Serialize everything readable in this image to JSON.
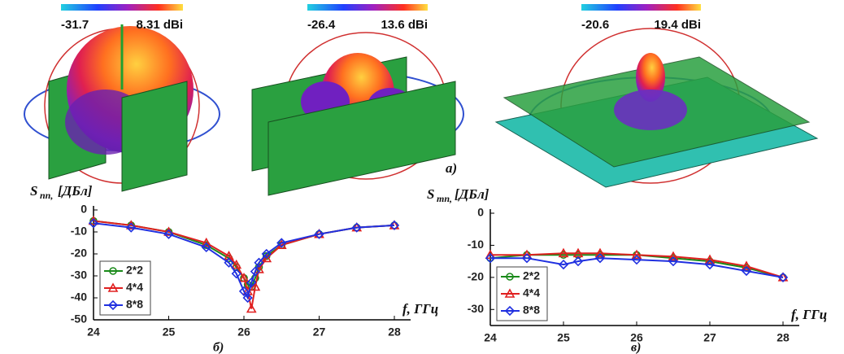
{
  "panel_a": {
    "label": "a)",
    "colorbars": [
      {
        "min": "-31.7",
        "max": "8.31 dBi"
      },
      {
        "min": "-26.4",
        "max": "13.6 dBi"
      },
      {
        "min": "-20.6",
        "max": "19.4 dBi"
      }
    ]
  },
  "chart_data": [
    {
      "type": "line",
      "caption": "б)",
      "ylabel": "S",
      "ylabel_sub": "nn,",
      "ylabel_unit": "[ДБл]",
      "xlabel": "f, ГГц",
      "x": [
        24,
        24.5,
        25,
        25.5,
        25.8,
        25.9,
        26,
        26.05,
        26.1,
        26.15,
        26.2,
        26.3,
        26.5,
        27,
        27.5,
        28
      ],
      "series": [
        {
          "name": "2*2",
          "color": "#1a8a1a",
          "marker": "circle",
          "values": [
            -5,
            -7,
            -10,
            -16,
            -22,
            -26,
            -31,
            -34,
            -35,
            -31,
            -26,
            -21,
            -16,
            -11,
            -8,
            -7
          ]
        },
        {
          "name": "4*4",
          "color": "#e02020",
          "marker": "triangle",
          "values": [
            -5,
            -7,
            -10,
            -15,
            -21,
            -25,
            -31,
            -37,
            -45,
            -35,
            -27,
            -22,
            -16,
            -11,
            -8,
            -7
          ]
        },
        {
          "name": "8*8",
          "color": "#2030e0",
          "marker": "diamond",
          "values": [
            -6,
            -8,
            -11,
            -17,
            -24,
            -29,
            -37,
            -40,
            -33,
            -28,
            -24,
            -20,
            -15,
            -11,
            -8,
            -7
          ]
        }
      ],
      "xlim": [
        24,
        28
      ],
      "xticks": [
        24,
        25,
        26,
        27,
        28
      ],
      "ylim": [
        -50,
        0
      ],
      "yticks": [
        -50,
        -40,
        -30,
        -20,
        -10,
        0
      ],
      "legend": "lower left"
    },
    {
      "type": "line",
      "caption": "в)",
      "ylabel": "S",
      "ylabel_sub": "mn,",
      "ylabel_unit": "[ДБл]",
      "xlabel": "f, ГГц",
      "x": [
        24,
        24.5,
        25,
        25.2,
        25.5,
        26,
        26.5,
        27,
        27.5,
        28
      ],
      "series": [
        {
          "name": "2*2",
          "color": "#1a8a1a",
          "marker": "circle",
          "values": [
            -14,
            -13,
            -13,
            -13,
            -13,
            -13,
            -14,
            -15,
            -17,
            -20
          ]
        },
        {
          "name": "4*4",
          "color": "#e02020",
          "marker": "triangle",
          "values": [
            -13,
            -13,
            -12.5,
            -12.5,
            -12.5,
            -13,
            -13.5,
            -14.5,
            -16.5,
            -20
          ]
        },
        {
          "name": "8*8",
          "color": "#2030e0",
          "marker": "diamond",
          "values": [
            -14,
            -14,
            -16,
            -15,
            -14,
            -14.5,
            -15,
            -16,
            -18,
            -20
          ]
        }
      ],
      "xlim": [
        24,
        28
      ],
      "xticks": [
        24,
        25,
        26,
        27,
        28
      ],
      "ylim": [
        -35,
        0
      ],
      "yticks": [
        -30,
        -20,
        -10,
        0
      ],
      "legend": "lower left"
    }
  ]
}
